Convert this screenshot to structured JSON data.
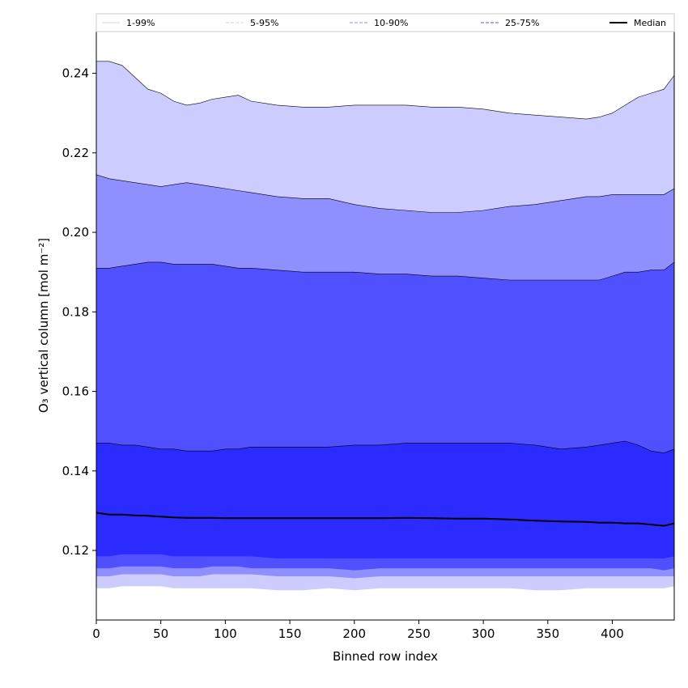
{
  "chart_data": {
    "type": "area",
    "xlabel": "Binned row index",
    "ylabel": "O₃ vertical column [mol m⁻²]",
    "xlim": [
      0,
      448
    ],
    "ylim": [
      0.1025,
      0.2505
    ],
    "xticks": [
      0,
      50,
      100,
      150,
      200,
      250,
      300,
      350,
      400
    ],
    "yticks": [
      0.12,
      0.14,
      0.16,
      0.18,
      0.2,
      0.22,
      0.24
    ],
    "ytick_labels": [
      "0.12",
      "0.14",
      "0.16",
      "0.18",
      "0.20",
      "0.22",
      "0.24"
    ],
    "grid": false,
    "legend_position": "top",
    "legend": [
      {
        "label": "1-99%",
        "color": "#ccccff",
        "style": "solid"
      },
      {
        "label": "5-95%",
        "color": "#ccccff",
        "style": "dashed"
      },
      {
        "label": "10-90%",
        "color": "#8f8fff",
        "style": "dashed"
      },
      {
        "label": "25-75%",
        "color": "#5050ff",
        "style": "dashed"
      },
      {
        "label": "Median",
        "color": "#000000",
        "style": "solid"
      }
    ],
    "x": [
      0,
      10,
      20,
      30,
      40,
      50,
      60,
      70,
      80,
      90,
      100,
      110,
      120,
      140,
      160,
      180,
      200,
      220,
      240,
      260,
      280,
      300,
      320,
      340,
      360,
      380,
      390,
      400,
      410,
      420,
      430,
      440,
      448
    ],
    "bands": [
      {
        "name": "1-99%",
        "color": "#ccccff",
        "upper": [
          0.243,
          0.243,
          0.242,
          0.239,
          0.236,
          0.235,
          0.233,
          0.232,
          0.2325,
          0.2335,
          0.234,
          0.2345,
          0.233,
          0.232,
          0.2315,
          0.2315,
          0.232,
          0.232,
          0.232,
          0.2315,
          0.2315,
          0.231,
          0.23,
          0.2295,
          0.229,
          0.2285,
          0.229,
          0.23,
          0.232,
          0.234,
          0.235,
          0.236,
          0.2395
        ],
        "lower": [
          0.1105,
          0.1105,
          0.111,
          0.111,
          0.111,
          0.111,
          0.1105,
          0.1105,
          0.1105,
          0.1105,
          0.1105,
          0.1105,
          0.1105,
          0.11,
          0.11,
          0.1105,
          0.11,
          0.1105,
          0.1105,
          0.1105,
          0.1105,
          0.1105,
          0.1105,
          0.11,
          0.11,
          0.1105,
          0.1105,
          0.1105,
          0.1105,
          0.1105,
          0.1105,
          0.1105,
          0.111
        ]
      },
      {
        "name": "5-95%",
        "color": "#8f8fff",
        "upper": [
          0.2145,
          0.2135,
          0.213,
          0.2125,
          0.212,
          0.2115,
          0.212,
          0.2125,
          0.212,
          0.2115,
          0.211,
          0.2105,
          0.21,
          0.209,
          0.2085,
          0.2085,
          0.207,
          0.206,
          0.2055,
          0.205,
          0.205,
          0.2055,
          0.2065,
          0.207,
          0.208,
          0.209,
          0.209,
          0.2095,
          0.2095,
          0.2095,
          0.2095,
          0.2095,
          0.211
        ],
        "lower": [
          0.1135,
          0.1135,
          0.114,
          0.114,
          0.114,
          0.114,
          0.1135,
          0.1135,
          0.1135,
          0.114,
          0.114,
          0.114,
          0.114,
          0.1135,
          0.1135,
          0.1135,
          0.113,
          0.1135,
          0.1135,
          0.1135,
          0.1135,
          0.1135,
          0.1135,
          0.1135,
          0.1135,
          0.1135,
          0.1135,
          0.1135,
          0.1135,
          0.1135,
          0.1135,
          0.1135,
          0.1135
        ]
      },
      {
        "name": "10-90%",
        "color": "#5050ff",
        "upper": [
          0.191,
          0.191,
          0.1915,
          0.192,
          0.1925,
          0.1925,
          0.192,
          0.192,
          0.192,
          0.192,
          0.1915,
          0.191,
          0.191,
          0.1905,
          0.19,
          0.19,
          0.19,
          0.1895,
          0.1895,
          0.189,
          0.189,
          0.1885,
          0.188,
          0.188,
          0.188,
          0.188,
          0.188,
          0.189,
          0.19,
          0.19,
          0.1905,
          0.1905,
          0.1925
        ],
        "lower": [
          0.1155,
          0.1155,
          0.116,
          0.116,
          0.116,
          0.116,
          0.1155,
          0.1155,
          0.1155,
          0.116,
          0.116,
          0.116,
          0.1155,
          0.1155,
          0.1155,
          0.1155,
          0.115,
          0.1155,
          0.1155,
          0.1155,
          0.1155,
          0.1155,
          0.1155,
          0.1155,
          0.1155,
          0.1155,
          0.1155,
          0.1155,
          0.1155,
          0.1155,
          0.1155,
          0.115,
          0.1155
        ]
      },
      {
        "name": "25-75%",
        "color": "#2b2bff",
        "upper": [
          0.147,
          0.147,
          0.1465,
          0.1465,
          0.146,
          0.1455,
          0.1455,
          0.145,
          0.145,
          0.145,
          0.1455,
          0.1455,
          0.146,
          0.146,
          0.146,
          0.146,
          0.1465,
          0.1465,
          0.147,
          0.147,
          0.147,
          0.147,
          0.147,
          0.1465,
          0.1455,
          0.146,
          0.1465,
          0.147,
          0.1475,
          0.1465,
          0.145,
          0.1445,
          0.1455
        ],
        "lower": [
          0.1185,
          0.1185,
          0.119,
          0.119,
          0.119,
          0.119,
          0.1185,
          0.1185,
          0.1185,
          0.1185,
          0.1185,
          0.1185,
          0.1185,
          0.118,
          0.118,
          0.118,
          0.118,
          0.118,
          0.118,
          0.118,
          0.118,
          0.118,
          0.118,
          0.118,
          0.118,
          0.118,
          0.118,
          0.118,
          0.118,
          0.118,
          0.118,
          0.118,
          0.1185
        ]
      }
    ],
    "median": [
      0.1295,
      0.129,
      0.129,
      0.1288,
      0.1287,
      0.1285,
      0.1283,
      0.1282,
      0.1282,
      0.1282,
      0.1281,
      0.1281,
      0.1281,
      0.1281,
      0.1281,
      0.1281,
      0.1281,
      0.1281,
      0.1282,
      0.1281,
      0.128,
      0.128,
      0.1278,
      0.1275,
      0.1273,
      0.1272,
      0.127,
      0.127,
      0.1268,
      0.1268,
      0.1265,
      0.1262,
      0.1268
    ]
  }
}
